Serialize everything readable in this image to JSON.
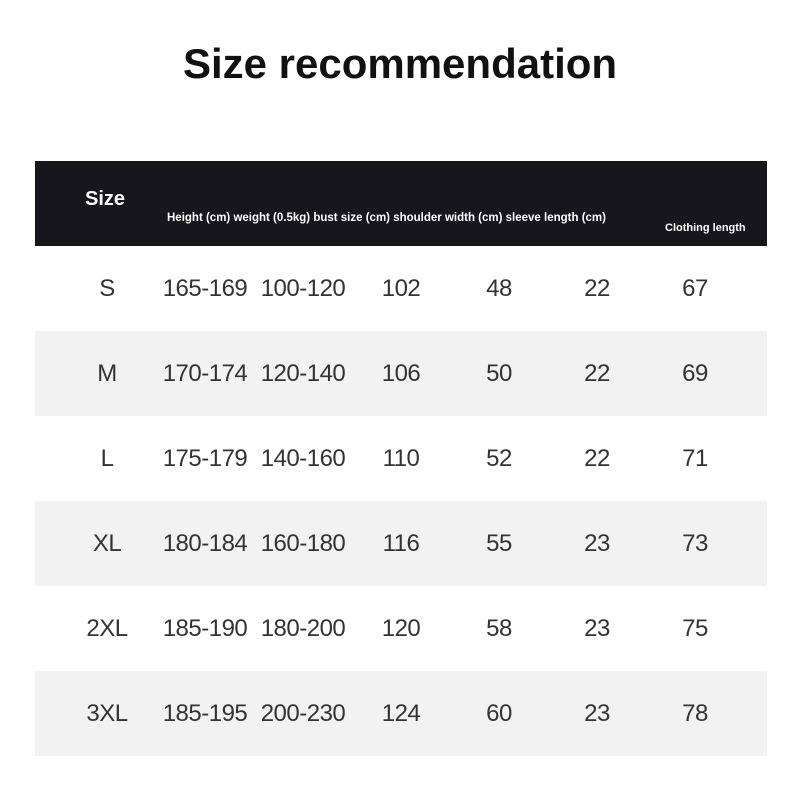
{
  "title": "Size recommendation",
  "header": {
    "size": "Size",
    "columns": "Height (cm) weight (0.5kg) bust size (cm) shoulder width (cm) sleeve length (cm)",
    "clothing_length": "Clothing length"
  },
  "rows": [
    [
      "S",
      "165-169",
      "100-120",
      "102",
      "48",
      "22",
      "67"
    ],
    [
      "M",
      "170-174",
      "120-140",
      "106",
      "50",
      "22",
      "69"
    ],
    [
      "L",
      "175-179",
      "140-160",
      "110",
      "52",
      "22",
      "71"
    ],
    [
      "XL",
      "180-184",
      "160-180",
      "116",
      "55",
      "23",
      "73"
    ],
    [
      "2XL",
      "185-190",
      "180-200",
      "120",
      "58",
      "23",
      "75"
    ],
    [
      "3XL",
      "185-195",
      "200-230",
      "124",
      "60",
      "23",
      "78"
    ]
  ]
}
